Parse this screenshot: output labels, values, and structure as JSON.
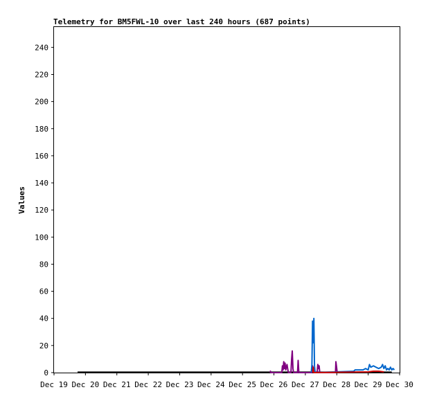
{
  "chart_data": {
    "type": "line",
    "title": "Telemetry for BM5FWL-10 over last 240 hours (687 points)",
    "xlabel": "",
    "ylabel": "Values",
    "ylim": [
      0,
      255
    ],
    "yticks": [
      0,
      20,
      40,
      60,
      80,
      100,
      120,
      140,
      160,
      180,
      200,
      220,
      240
    ],
    "xlim": [
      "2023-12-19",
      "2023-12-30"
    ],
    "xticks": [
      "Dec 19",
      "Dec 20",
      "Dec 21",
      "Dec 22",
      "Dec 23",
      "Dec 24",
      "Dec 25",
      "Dec 26",
      "Dec 27",
      "Dec 28",
      "Dec 29",
      "Dec 30"
    ],
    "grid": false,
    "legend": "none",
    "series": [
      {
        "color": "#000000",
        "points": [
          [
            "2023-12-19T18:00",
            0.3
          ],
          [
            "2023-12-25T21:00",
            0.3
          ],
          [
            "2023-12-26T00:00",
            0.3
          ],
          [
            "2023-12-27T00:00",
            0.3
          ],
          [
            "2023-12-28T00:00",
            0.3
          ],
          [
            "2023-12-29T18:00",
            0.3
          ]
        ]
      },
      {
        "color": "#7f007f",
        "points": [
          [
            "2023-12-25T21:00",
            0
          ],
          [
            "2023-12-25T21:20",
            1
          ],
          [
            "2023-12-25T21:40",
            0
          ],
          [
            "2023-12-26T06:00",
            0
          ],
          [
            "2023-12-26T06:30",
            5
          ],
          [
            "2023-12-26T07:00",
            2
          ],
          [
            "2023-12-26T07:30",
            8
          ],
          [
            "2023-12-26T08:00",
            3
          ],
          [
            "2023-12-26T08:30",
            7
          ],
          [
            "2023-12-26T09:00",
            2
          ],
          [
            "2023-12-26T10:00",
            6
          ],
          [
            "2023-12-26T11:00",
            0
          ],
          [
            "2023-12-26T13:00",
            0
          ],
          [
            "2023-12-26T13:30",
            10
          ],
          [
            "2023-12-26T14:00",
            16
          ],
          [
            "2023-12-26T14:30",
            3
          ],
          [
            "2023-12-26T15:00",
            0
          ],
          [
            "2023-12-26T18:00",
            0
          ],
          [
            "2023-12-26T18:30",
            9
          ],
          [
            "2023-12-26T19:00",
            0
          ],
          [
            "2023-12-27T05:00",
            0
          ],
          [
            "2023-12-27T05:30",
            5
          ],
          [
            "2023-12-27T06:00",
            2
          ],
          [
            "2023-12-27T06:30",
            0
          ],
          [
            "2023-12-27T09:00",
            0
          ],
          [
            "2023-12-27T09:30",
            6
          ],
          [
            "2023-12-27T10:00",
            3
          ],
          [
            "2023-12-27T10:30",
            5
          ],
          [
            "2023-12-27T11:00",
            0
          ],
          [
            "2023-12-27T23:00",
            0
          ],
          [
            "2023-12-27T23:20",
            8
          ],
          [
            "2023-12-27T23:50",
            4
          ],
          [
            "2023-12-28T00:20",
            0
          ]
        ]
      },
      {
        "color": "#0066cc",
        "points": [
          [
            "2023-12-27T04:30",
            0
          ],
          [
            "2023-12-27T05:00",
            6
          ],
          [
            "2023-12-27T05:30",
            38
          ],
          [
            "2023-12-27T06:00",
            22
          ],
          [
            "2023-12-27T06:30",
            40
          ],
          [
            "2023-12-27T07:00",
            5
          ],
          [
            "2023-12-27T07:30",
            0
          ],
          [
            "2023-12-28T13:00",
            1
          ],
          [
            "2023-12-28T14:00",
            2
          ],
          [
            "2023-12-28T16:00",
            2
          ],
          [
            "2023-12-28T18:00",
            2
          ],
          [
            "2023-12-28T20:00",
            2
          ],
          [
            "2023-12-28T22:00",
            3
          ],
          [
            "2023-12-29T00:00",
            2
          ],
          [
            "2023-12-29T01:00",
            6
          ],
          [
            "2023-12-29T02:00",
            4
          ],
          [
            "2023-12-29T04:00",
            5
          ],
          [
            "2023-12-29T06:00",
            4
          ],
          [
            "2023-12-29T08:00",
            3
          ],
          [
            "2023-12-29T10:00",
            4
          ],
          [
            "2023-12-29T11:00",
            6
          ],
          [
            "2023-12-29T12:00",
            3
          ],
          [
            "2023-12-29T13:00",
            5
          ],
          [
            "2023-12-29T14:00",
            2
          ],
          [
            "2023-12-29T15:00",
            3
          ],
          [
            "2023-12-29T16:00",
            2
          ],
          [
            "2023-12-29T17:00",
            4
          ],
          [
            "2023-12-29T18:00",
            2
          ],
          [
            "2023-12-29T19:00",
            3
          ],
          [
            "2023-12-29T20:00",
            2
          ]
        ]
      },
      {
        "color": "#cc0000",
        "points": [
          [
            "2023-12-27T05:30",
            0
          ],
          [
            "2023-12-27T06:00",
            4
          ],
          [
            "2023-12-27T06:30",
            0
          ],
          [
            "2023-12-29T00:00",
            0.5
          ],
          [
            "2023-12-29T04:00",
            1
          ],
          [
            "2023-12-29T08:00",
            1
          ],
          [
            "2023-12-29T12:00",
            0.5
          ]
        ]
      }
    ]
  }
}
